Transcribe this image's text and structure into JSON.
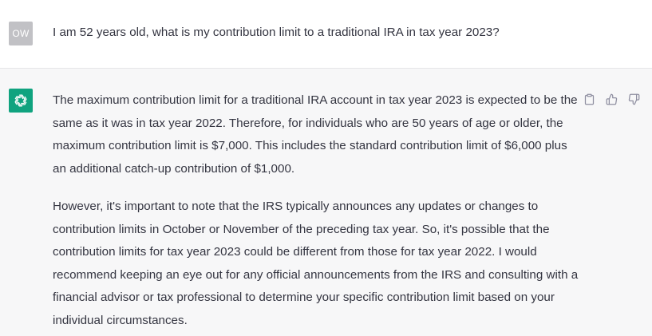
{
  "user_turn": {
    "avatar_initials": "OW",
    "message": "I am 52 years old, what is my contribution limit to a traditional IRA in tax year 2023?"
  },
  "assistant_turn": {
    "avatar_icon": "openai-logo-icon",
    "paragraphs": [
      "The maximum contribution limit for a traditional IRA account in tax year 2023 is expected to be the same as it was in tax year 2022. Therefore, for individuals who are 50 years of age or older, the maximum contribution limit is $7,000. This includes the standard contribution limit of $6,000 plus an additional catch-up contribution of $1,000.",
      "However, it's important to note that the IRS typically announces any updates or changes to contribution limits in October or November of the preceding tax year. So, it's possible that the contribution limits for tax year 2023 could be different from those for tax year 2022. I would recommend keeping an eye out for any official announcements from the IRS and consulting with a financial advisor or tax professional to determine your specific contribution limit based on your individual circumstances."
    ],
    "actions": [
      "copy-icon",
      "thumbs-up-icon",
      "thumbs-down-icon"
    ]
  },
  "colors": {
    "assistant_bg": "#f7f7f8",
    "user_avatar": "#c1c1c5",
    "assistant_avatar": "#10a37f",
    "text": "#343541",
    "icon": "#8e8ea0"
  }
}
